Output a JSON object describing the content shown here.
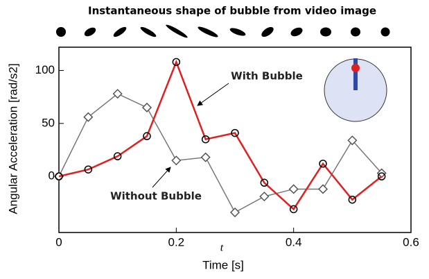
{
  "chart_data": {
    "type": "line",
    "title": "Instantaneous shape of bubble from video image",
    "x_label": "Time [s]",
    "x_symbol": "t",
    "y_label": "Angular Acceleration [rad/s2]",
    "x": [
      0,
      0.05,
      0.1,
      0.15,
      0.2,
      0.25,
      0.3,
      0.35,
      0.4,
      0.45,
      0.5,
      0.55
    ],
    "series": [
      {
        "name": "Without Bubble",
        "color": "#777777",
        "marker": "diamond",
        "values": [
          0,
          56,
          78,
          65,
          15,
          18,
          -34,
          -19,
          -12,
          -12,
          34,
          3
        ]
      },
      {
        "name": "With Bubble",
        "color": "#e02020",
        "marker": "circle",
        "values": [
          0,
          6.5,
          19,
          38,
          108,
          35,
          41,
          -6,
          -31,
          12,
          -22,
          0
        ]
      }
    ],
    "xlim": [
      0,
      0.6
    ],
    "xticks": [
      0,
      0.2,
      0.4,
      0.6
    ],
    "ylim": [
      -53,
      122
    ],
    "yticks": [
      0,
      50,
      100
    ]
  }
}
